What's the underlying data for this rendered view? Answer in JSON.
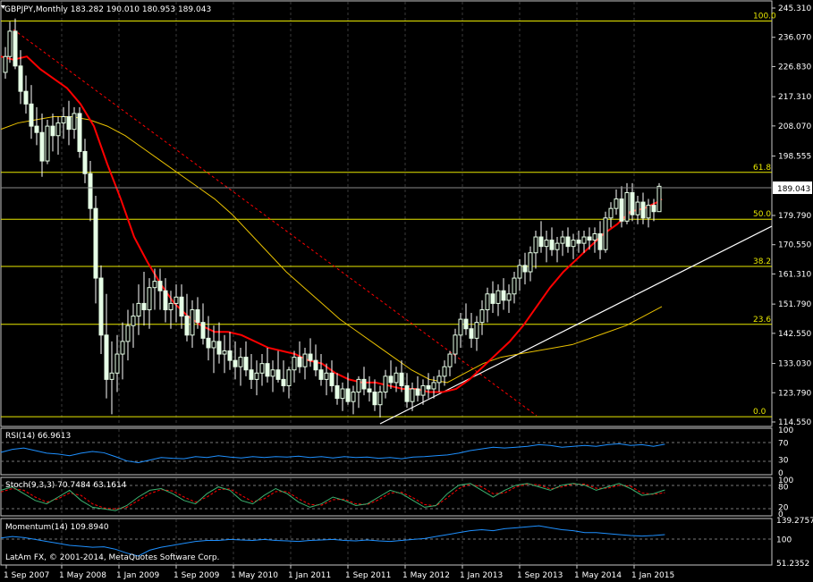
{
  "colors": {
    "background": "#000000",
    "grid": "#3a3a3a",
    "fib_line": "#e8e800",
    "ma_fast": "#ff0000",
    "ma_slow": "#e8c000",
    "trendline": "#ffffff",
    "downtrend": "#ff0000",
    "rsi_line": "#1e90ff",
    "stoch_main": "#3cb371",
    "stoch_signal": "#ff0000",
    "momentum_line": "#1e90ff",
    "candle": "#e6ffe6",
    "price_box_bg": "#ffffff",
    "price_box_fg": "#000000"
  },
  "main_panel": {
    "header": "GBPJPY,Monthly  183.282 190.010 180.953 189.043",
    "current_price": "189.043",
    "price_axis": [
      "245.310",
      "236.070",
      "226.830",
      "217.310",
      "208.070",
      "198.555",
      "189.043",
      "179.790",
      "170.550",
      "161.310",
      "151.790",
      "142.550",
      "133.030",
      "123.790",
      "114.550"
    ],
    "fib_levels": [
      {
        "label": "100.0",
        "value": 241.2
      },
      {
        "label": "61.8",
        "value": 193.4
      },
      {
        "label": "50.0",
        "value": 178.6
      },
      {
        "label": "38.2",
        "value": 163.7
      },
      {
        "label": "23.6",
        "value": 145.4
      },
      {
        "label": "0.0",
        "value": 116.2
      }
    ]
  },
  "indicators": [
    {
      "key": "rsi",
      "label": "RSI(14) 66.9613",
      "axis": [
        "100",
        "70",
        "30",
        "0"
      ]
    },
    {
      "key": "stoch",
      "label": "Stoch(9,3,3) 70.7484 63.1614",
      "axis": [
        "100",
        "80",
        "20",
        "0"
      ]
    },
    {
      "key": "momentum",
      "label": "Momentum(14) 109.8940",
      "axis": [
        "139.2757",
        "100",
        "51.2352"
      ]
    }
  ],
  "copyright": "LatAm FX, © 2001-2014, MetaQuotes Software Corp.",
  "time_axis": [
    "1 Sep 2007",
    "1 May 2008",
    "1 Jan 2009",
    "1 Sep 2009",
    "1 May 2010",
    "1 Jan 2011",
    "1 Sep 2011",
    "1 May 2012",
    "1 Jan 2013",
    "1 Sep 2013",
    "1 May 2014",
    "1 Jan 2015"
  ],
  "chart_data": {
    "type": "candlestick",
    "symbol": "GBPJPY",
    "timeframe": "Monthly",
    "ylim": [
      114.55,
      245.31
    ],
    "last_bar": {
      "open": 183.282,
      "high": 190.01,
      "low": 180.953,
      "close": 189.043
    }
  }
}
